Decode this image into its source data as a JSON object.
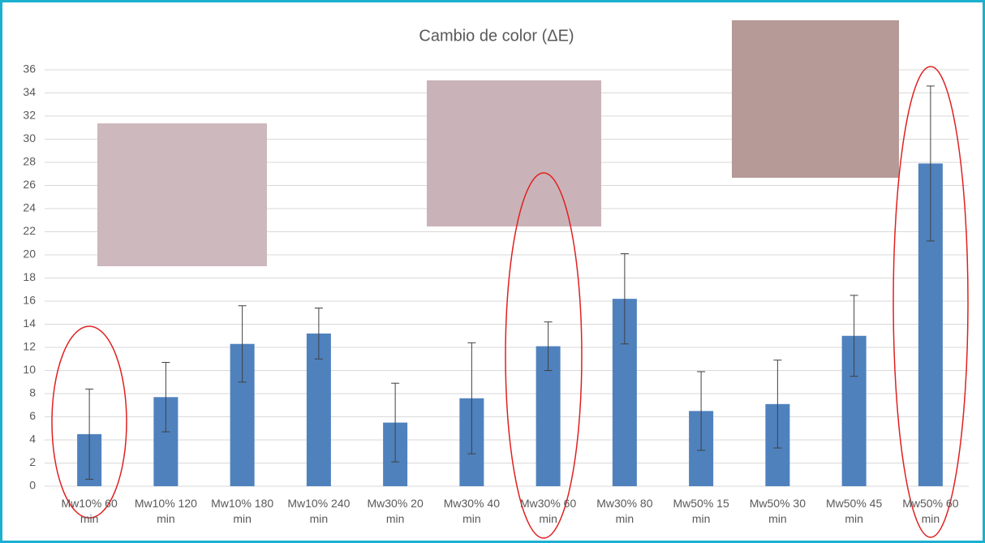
{
  "chart_data": {
    "type": "bar",
    "title": "Cambio de color (ΔE)",
    "categories": [
      "Mw10% 60 min",
      "Mw10% 120 min",
      "Mw10% 180 min",
      "Mw10% 240 min",
      "Mw30% 20 min",
      "Mw30% 40 min",
      "Mw30% 60 min",
      "Mw30% 80 min",
      "Mw50% 15 min",
      "Mw50% 30 min",
      "Mw50% 45 min",
      "Mw50% 60 min"
    ],
    "values": [
      4.5,
      7.7,
      12.3,
      13.2,
      5.5,
      7.6,
      12.1,
      16.2,
      6.5,
      7.1,
      13.0,
      27.9
    ],
    "errors": [
      3.9,
      3.0,
      3.3,
      2.2,
      3.4,
      4.8,
      2.1,
      3.9,
      3.4,
      3.8,
      3.5,
      6.7
    ],
    "color": "#4f81bd",
    "ylim": [
      0,
      36
    ],
    "yticks": [
      0,
      2,
      4,
      6,
      8,
      10,
      12,
      14,
      16,
      18,
      20,
      22,
      24,
      26,
      28,
      30,
      32,
      34,
      36
    ],
    "grid": true
  }
}
